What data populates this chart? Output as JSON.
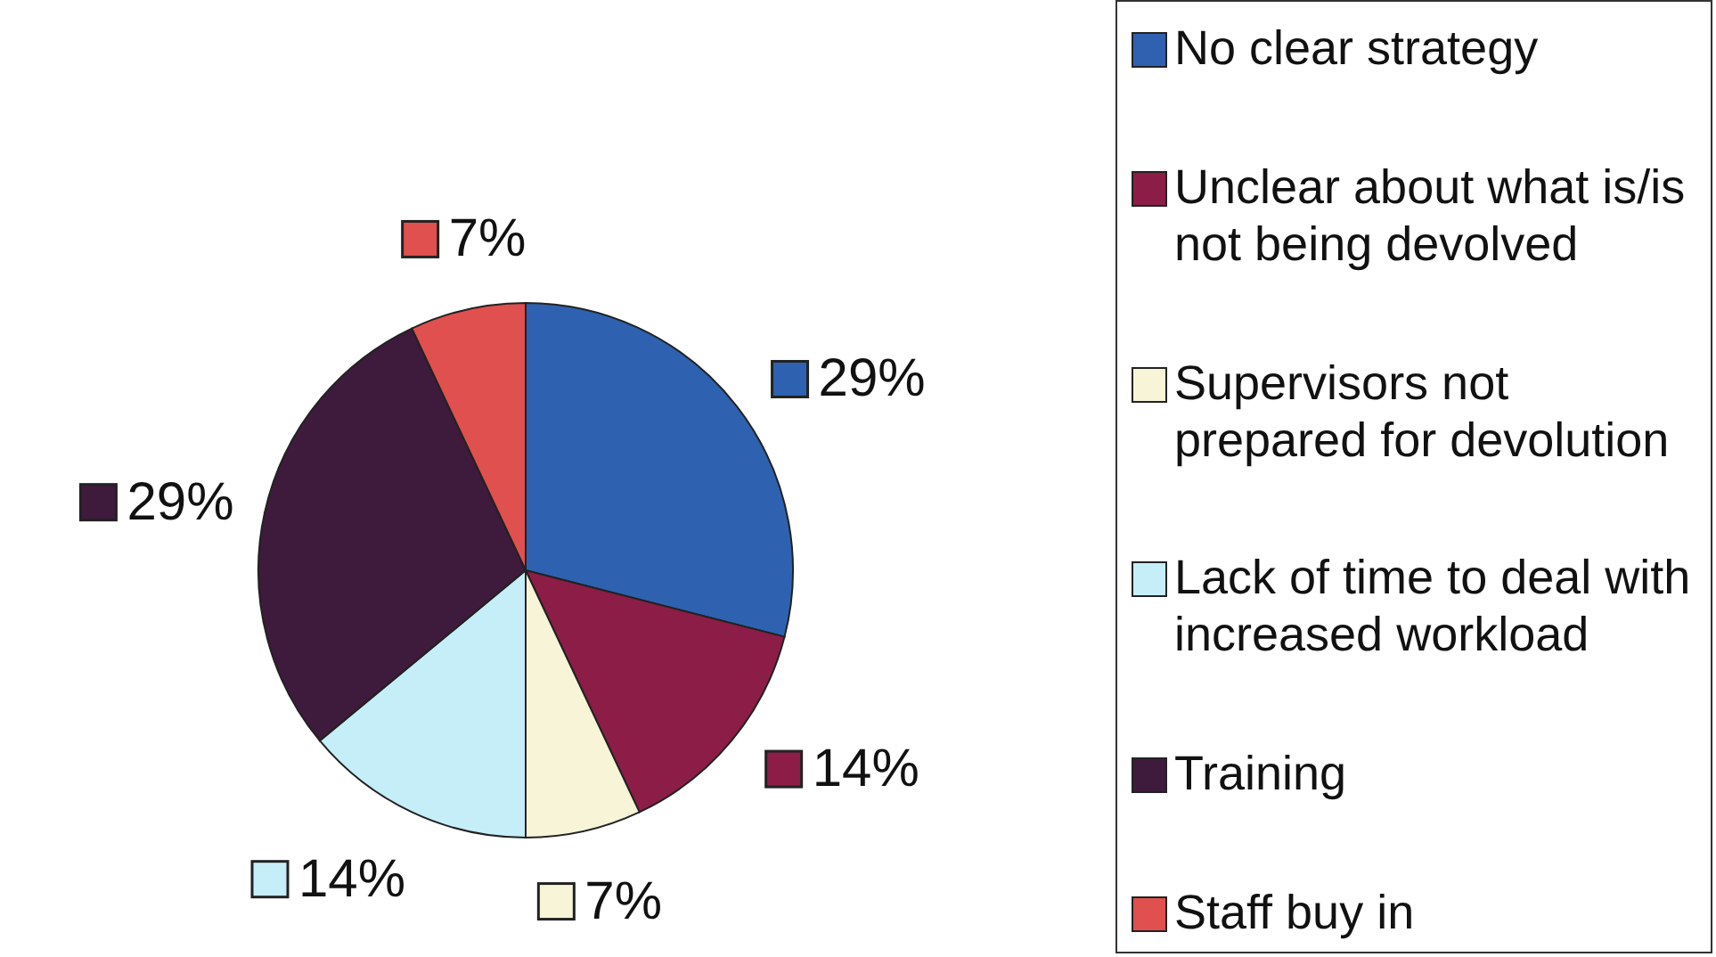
{
  "chart_data": {
    "type": "pie",
    "categories": [
      "No clear strategy",
      "Unclear about what is/is not being devolved",
      "Supervisors not prepared for devolution",
      "Lack of time to deal with increased workload",
      "Training",
      "Staff buy in"
    ],
    "values": [
      29,
      14,
      7,
      14,
      29,
      7
    ],
    "value_labels": [
      "29%",
      "14%",
      "7%",
      "14%",
      "29%",
      "7%"
    ],
    "colors": [
      "#2e62b0",
      "#8c1d46",
      "#f8f4d8",
      "#c5eef8",
      "#3e1a3c",
      "#e0504e"
    ],
    "legend": "right"
  }
}
